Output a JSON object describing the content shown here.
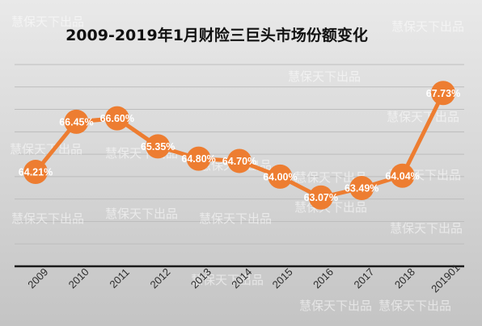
{
  "chart_data": {
    "type": "line",
    "title": "2009-2019年1月财险三巨头市场份额变化",
    "categories": [
      "2009",
      "2010",
      "2011",
      "2012",
      "2013",
      "2014",
      "2015",
      "2016",
      "2017",
      "2018",
      "201901"
    ],
    "values": [
      64.21,
      66.45,
      66.6,
      65.35,
      64.8,
      64.7,
      64.0,
      63.07,
      63.49,
      64.04,
      67.73
    ],
    "value_labels": [
      "64.21%",
      "66.45%",
      "66.60%",
      "65.35%",
      "64.80%",
      "64.70%",
      "64.00%",
      "63.07%",
      "63.49%",
      "64.04%",
      "67.73%"
    ],
    "xlabel": "",
    "ylabel": "",
    "ylim": [
      60,
      69
    ],
    "grid": true,
    "legend": "none",
    "colors": {
      "line": "#ed7d31",
      "background_top": "#e9e9e9",
      "background_bottom": "#c4c4c4",
      "gridline": "#bdbdbd",
      "axis": "#1a1a1a",
      "label": "#ffffff"
    }
  },
  "watermark": {
    "text": "慧保天下出品"
  }
}
